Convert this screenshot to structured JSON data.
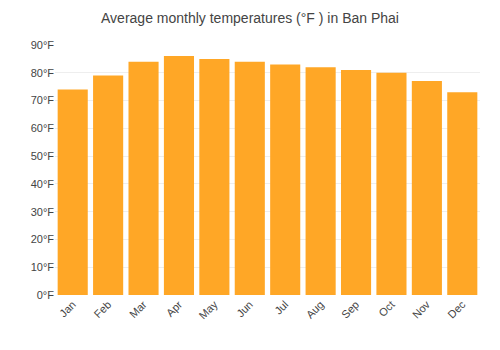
{
  "chart_data": {
    "type": "bar",
    "title": "Average monthly temperatures (°F ) in Ban Phai",
    "categories": [
      "Jan",
      "Feb",
      "Mar",
      "Apr",
      "May",
      "Jun",
      "Jul",
      "Aug",
      "Sep",
      "Oct",
      "Nov",
      "Dec"
    ],
    "values": [
      74,
      79,
      84,
      86,
      85,
      84,
      83,
      82,
      81,
      80,
      77,
      73
    ],
    "color": "#FFA726",
    "ylim": [
      0,
      90
    ],
    "yticks": [
      {
        "value": 0,
        "label": "0°F"
      },
      {
        "value": 10,
        "label": "10°F"
      },
      {
        "value": 20,
        "label": "20°F"
      },
      {
        "value": 30,
        "label": "30°F"
      },
      {
        "value": 40,
        "label": "40°F"
      },
      {
        "value": 50,
        "label": "50°F"
      },
      {
        "value": 60,
        "label": "60°F"
      },
      {
        "value": 70,
        "label": "70°F"
      },
      {
        "value": 80,
        "label": "80°F"
      },
      {
        "value": 90,
        "label": "90°F"
      }
    ],
    "grid": true
  }
}
